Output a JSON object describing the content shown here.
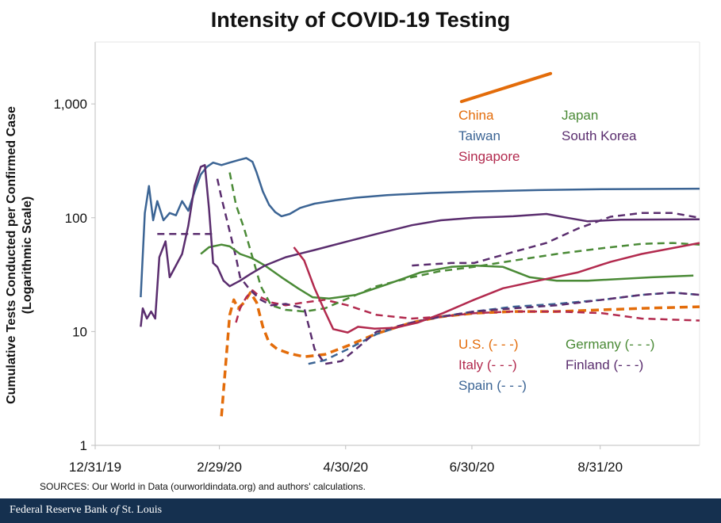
{
  "chart_data": {
    "type": "line",
    "title": "Intensity of COVID-19 Testing",
    "ylabel_line1": "Cumulative Tests Conducted per Confirmed Case",
    "ylabel_line2": "(Logarithmic Scale)",
    "y_scale": "log",
    "ylim": [
      1,
      3500
    ],
    "y_ticks": [
      {
        "value": 1,
        "label": "1"
      },
      {
        "value": 10,
        "label": "10"
      },
      {
        "value": 100,
        "label": "100"
      },
      {
        "value": 1000,
        "label": "1,000"
      }
    ],
    "xlim": [
      "2019-12-31",
      "2020-10-18"
    ],
    "x_ticks": [
      {
        "date": "2019-12-31",
        "label": "12/31/19"
      },
      {
        "date": "2020-02-29",
        "label": "2/29/20"
      },
      {
        "date": "2020-04-30",
        "label": "4/30/20"
      },
      {
        "date": "2020-06-30",
        "label": "6/30/20"
      },
      {
        "date": "2020-08-31",
        "label": "8/31/20"
      }
    ],
    "grid": false,
    "legend_placement": "inline",
    "series": [
      {
        "name": "China",
        "label": "China",
        "color": "#e36c0a",
        "dashed": false,
        "points": [
          [
            "2020-06-25",
            1050
          ],
          [
            "2020-08-07",
            1850
          ]
        ]
      },
      {
        "name": "Taiwan",
        "label": "Taiwan",
        "color": "#3b6494",
        "dashed": false,
        "points": [
          [
            "2020-01-22",
            20
          ],
          [
            "2020-01-24",
            110
          ],
          [
            "2020-01-26",
            190
          ],
          [
            "2020-01-28",
            95
          ],
          [
            "2020-01-30",
            140
          ],
          [
            "2020-02-02",
            95
          ],
          [
            "2020-02-05",
            110
          ],
          [
            "2020-02-08",
            105
          ],
          [
            "2020-02-11",
            140
          ],
          [
            "2020-02-14",
            115
          ],
          [
            "2020-02-17",
            170
          ],
          [
            "2020-02-20",
            240
          ],
          [
            "2020-02-23",
            280
          ],
          [
            "2020-02-26",
            305
          ],
          [
            "2020-03-01",
            290
          ],
          [
            "2020-03-05",
            305
          ],
          [
            "2020-03-09",
            320
          ],
          [
            "2020-03-13",
            335
          ],
          [
            "2020-03-16",
            310
          ],
          [
            "2020-03-18",
            250
          ],
          [
            "2020-03-21",
            170
          ],
          [
            "2020-03-24",
            130
          ],
          [
            "2020-03-27",
            112
          ],
          [
            "2020-03-30",
            103
          ],
          [
            "2020-04-03",
            108
          ],
          [
            "2020-04-08",
            122
          ],
          [
            "2020-04-15",
            133
          ],
          [
            "2020-04-25",
            142
          ],
          [
            "2020-05-05",
            150
          ],
          [
            "2020-05-20",
            158
          ],
          [
            "2020-06-10",
            165
          ],
          [
            "2020-07-01",
            170
          ],
          [
            "2020-08-01",
            175
          ],
          [
            "2020-09-01",
            178
          ],
          [
            "2020-10-18",
            180
          ]
        ]
      },
      {
        "name": "Japan",
        "label": "Japan",
        "color": "#4a8a36",
        "dashed": false,
        "points": [
          [
            "2020-02-20",
            48
          ],
          [
            "2020-02-24",
            55
          ],
          [
            "2020-03-01",
            58
          ],
          [
            "2020-03-05",
            56
          ],
          [
            "2020-03-10",
            48
          ],
          [
            "2020-03-16",
            44
          ],
          [
            "2020-03-22",
            38
          ],
          [
            "2020-03-30",
            30
          ],
          [
            "2020-04-07",
            24
          ],
          [
            "2020-04-14",
            20
          ],
          [
            "2020-04-22",
            19.5
          ],
          [
            "2020-05-05",
            21
          ],
          [
            "2020-05-20",
            26
          ],
          [
            "2020-06-05",
            33
          ],
          [
            "2020-06-20",
            37
          ],
          [
            "2020-07-01",
            38
          ],
          [
            "2020-07-15",
            37
          ],
          [
            "2020-07-28",
            30
          ],
          [
            "2020-08-10",
            28
          ],
          [
            "2020-08-25",
            28
          ],
          [
            "2020-09-10",
            29
          ],
          [
            "2020-09-25",
            30
          ],
          [
            "2020-10-15",
            31
          ]
        ]
      },
      {
        "name": "South Korea",
        "label": "South Korea",
        "color": "#5a2d6e",
        "dashed": false,
        "points": [
          [
            "2020-01-22",
            11
          ],
          [
            "2020-01-23",
            16
          ],
          [
            "2020-01-25",
            13
          ],
          [
            "2020-01-27",
            15
          ],
          [
            "2020-01-29",
            13
          ],
          [
            "2020-01-31",
            45
          ],
          [
            "2020-02-03",
            62
          ],
          [
            "2020-02-05",
            30
          ],
          [
            "2020-02-08",
            38
          ],
          [
            "2020-02-11",
            48
          ],
          [
            "2020-02-14",
            85
          ],
          [
            "2020-02-17",
            190
          ],
          [
            "2020-02-20",
            280
          ],
          [
            "2020-02-22",
            290
          ],
          [
            "2020-02-24",
            120
          ],
          [
            "2020-02-26",
            40
          ],
          [
            "2020-02-28",
            37
          ],
          [
            "2020-03-02",
            28
          ],
          [
            "2020-03-05",
            25
          ],
          [
            "2020-03-10",
            28
          ],
          [
            "2020-03-15",
            32
          ],
          [
            "2020-03-22",
            38
          ],
          [
            "2020-04-01",
            45
          ],
          [
            "2020-04-15",
            52
          ],
          [
            "2020-05-01",
            62
          ],
          [
            "2020-05-15",
            72
          ],
          [
            "2020-06-01",
            86
          ],
          [
            "2020-06-15",
            95
          ],
          [
            "2020-07-01",
            100
          ],
          [
            "2020-07-20",
            103
          ],
          [
            "2020-08-05",
            108
          ],
          [
            "2020-08-15",
            100
          ],
          [
            "2020-08-25",
            93
          ],
          [
            "2020-09-10",
            96
          ],
          [
            "2020-10-18",
            97
          ]
        ]
      },
      {
        "name": "Singapore",
        "label": "Singapore",
        "color": "#b22a4e",
        "dashed": false,
        "points": [
          [
            "2020-04-05",
            55
          ],
          [
            "2020-04-10",
            42
          ],
          [
            "2020-04-15",
            24
          ],
          [
            "2020-04-20",
            15
          ],
          [
            "2020-04-24",
            10.5
          ],
          [
            "2020-05-01",
            9.8
          ],
          [
            "2020-05-06",
            11
          ],
          [
            "2020-05-14",
            10.6
          ],
          [
            "2020-05-24",
            10.8
          ],
          [
            "2020-06-04",
            12
          ],
          [
            "2020-06-16",
            14.5
          ],
          [
            "2020-07-01",
            19
          ],
          [
            "2020-07-15",
            24
          ],
          [
            "2020-08-01",
            28
          ],
          [
            "2020-08-20",
            33
          ],
          [
            "2020-09-05",
            41
          ],
          [
            "2020-09-20",
            48
          ],
          [
            "2020-10-18",
            60
          ]
        ]
      },
      {
        "name": "U.S.",
        "label": "U.S. (- - -)",
        "color": "#e36c0a",
        "dashed": true,
        "points": [
          [
            "2020-03-01",
            1.8
          ],
          [
            "2020-03-03",
            5
          ],
          [
            "2020-03-05",
            14
          ],
          [
            "2020-03-07",
            19
          ],
          [
            "2020-03-09",
            16
          ],
          [
            "2020-03-12",
            18
          ],
          [
            "2020-03-15",
            22
          ],
          [
            "2020-03-18",
            18
          ],
          [
            "2020-03-21",
            11
          ],
          [
            "2020-03-24",
            8
          ],
          [
            "2020-03-28",
            7
          ],
          [
            "2020-04-03",
            6.4
          ],
          [
            "2020-04-10",
            6
          ],
          [
            "2020-04-20",
            6.3
          ],
          [
            "2020-05-01",
            7.5
          ],
          [
            "2020-05-15",
            9.6
          ],
          [
            "2020-06-01",
            12
          ],
          [
            "2020-06-15",
            13.5
          ],
          [
            "2020-07-01",
            14.5
          ],
          [
            "2020-07-20",
            15
          ],
          [
            "2020-08-10",
            15
          ],
          [
            "2020-09-01",
            15.5
          ],
          [
            "2020-09-20",
            16
          ],
          [
            "2020-10-18",
            16.5
          ]
        ]
      },
      {
        "name": "Italy",
        "label": "Italy (- - -)",
        "color": "#b22a4e",
        "dashed": true,
        "points": [
          [
            "2020-03-08",
            12
          ],
          [
            "2020-03-10",
            16
          ],
          [
            "2020-03-13",
            20
          ],
          [
            "2020-03-16",
            23
          ],
          [
            "2020-03-20",
            20
          ],
          [
            "2020-03-25",
            18
          ],
          [
            "2020-04-01",
            17
          ],
          [
            "2020-04-10",
            18
          ],
          [
            "2020-04-20",
            19
          ],
          [
            "2020-05-01",
            17
          ],
          [
            "2020-05-15",
            14
          ],
          [
            "2020-06-01",
            13
          ],
          [
            "2020-06-15",
            13.5
          ],
          [
            "2020-07-01",
            14.5
          ],
          [
            "2020-07-20",
            15
          ],
          [
            "2020-08-10",
            15
          ],
          [
            "2020-09-01",
            14.5
          ],
          [
            "2020-09-20",
            13
          ],
          [
            "2020-10-18",
            12.5
          ]
        ]
      },
      {
        "name": "Spain",
        "label": "Spain (- - -)",
        "color": "#3b6494",
        "dashed": true,
        "points": [
          [
            "2020-04-12",
            5.2
          ],
          [
            "2020-04-20",
            5.6
          ],
          [
            "2020-05-01",
            7
          ],
          [
            "2020-05-15",
            9.5
          ],
          [
            "2020-06-01",
            12
          ],
          [
            "2020-06-15",
            13.5
          ],
          [
            "2020-07-01",
            15
          ],
          [
            "2020-07-20",
            16.5
          ],
          [
            "2020-08-10",
            17.5
          ],
          [
            "2020-09-01",
            19
          ],
          [
            "2020-09-20",
            21
          ],
          [
            "2020-10-05",
            22
          ],
          [
            "2020-10-18",
            21
          ]
        ]
      },
      {
        "name": "Germany",
        "label": "Germany (- - -)",
        "color": "#4a8a36",
        "dashed": true,
        "points": [
          [
            "2020-03-05",
            250
          ],
          [
            "2020-03-08",
            130
          ],
          [
            "2020-03-12",
            80
          ],
          [
            "2020-03-16",
            45
          ],
          [
            "2020-03-20",
            25
          ],
          [
            "2020-03-25",
            17
          ],
          [
            "2020-04-01",
            15.5
          ],
          [
            "2020-04-10",
            15
          ],
          [
            "2020-04-20",
            16
          ],
          [
            "2020-05-01",
            19.5
          ],
          [
            "2020-05-15",
            25
          ],
          [
            "2020-06-01",
            30
          ],
          [
            "2020-06-15",
            34
          ],
          [
            "2020-07-01",
            37
          ],
          [
            "2020-07-20",
            42
          ],
          [
            "2020-08-10",
            48
          ],
          [
            "2020-09-01",
            54
          ],
          [
            "2020-09-20",
            59
          ],
          [
            "2020-10-05",
            60
          ],
          [
            "2020-10-18",
            58
          ]
        ]
      },
      {
        "name": "Finland",
        "label": "Finland (- - -)",
        "color": "#5a2d6e",
        "dashed": true,
        "points": [
          [
            "2020-02-28",
            220
          ],
          [
            "2020-03-01",
            150
          ],
          [
            "2020-03-04",
            90
          ],
          [
            "2020-03-08",
            45
          ],
          [
            "2020-03-10",
            30
          ],
          [
            "2020-03-15",
            23
          ],
          [
            "2020-03-20",
            19
          ],
          [
            "2020-03-25",
            17
          ],
          [
            "2020-04-01",
            17.5
          ],
          [
            "2020-04-10",
            16
          ],
          [
            "2020-04-15",
            7
          ],
          [
            "2020-04-20",
            5.2
          ],
          [
            "2020-04-28",
            5.5
          ],
          [
            "2020-05-05",
            7
          ],
          [
            "2020-05-15",
            10
          ],
          [
            "2020-06-01",
            12
          ],
          [
            "2020-06-15",
            13.5
          ],
          [
            "2020-07-01",
            15
          ],
          [
            "2020-07-20",
            16
          ],
          [
            "2020-08-10",
            17
          ],
          [
            "2020-09-01",
            19
          ],
          [
            "2020-09-20",
            21
          ],
          [
            "2020-10-05",
            22
          ],
          [
            "2020-10-18",
            21
          ]
        ]
      }
    ],
    "period_lines": [
      {
        "color": "#5a2d6e",
        "dashed": true,
        "points": [
          [
            "2020-01-30",
            72
          ],
          [
            "2020-02-27",
            72
          ]
        ]
      },
      {
        "color": "#5a2d6e",
        "dashed": true,
        "points": [
          [
            "2020-06-01",
            38
          ],
          [
            "2020-06-20",
            40
          ],
          [
            "2020-07-01",
            40
          ],
          [
            "2020-07-20",
            50
          ],
          [
            "2020-08-05",
            60
          ],
          [
            "2020-08-20",
            80
          ],
          [
            "2020-09-05",
            102
          ],
          [
            "2020-09-20",
            110
          ],
          [
            "2020-10-05",
            110
          ],
          [
            "2020-10-18",
            100
          ]
        ]
      }
    ]
  },
  "source_note": "SOURCES: Our World in Data (ourworldindata.org)  and authors' calculations.",
  "footer": {
    "prefix": "Federal Reserve Bank ",
    "italic": "of",
    "suffix": " St. Louis",
    "bg_color": "#15304f"
  }
}
